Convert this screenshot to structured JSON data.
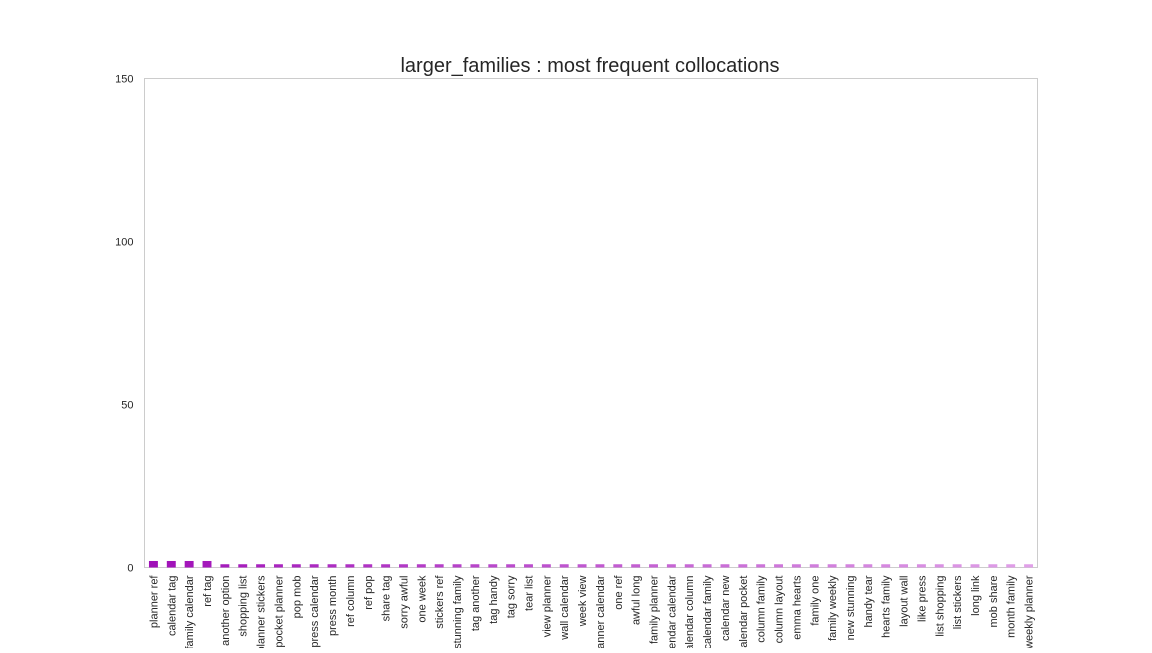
{
  "chart_data": {
    "type": "bar",
    "title": "larger_families : most frequent collocations",
    "xlabel": "",
    "ylabel": "",
    "ylim": [
      0,
      150
    ],
    "yticks": [
      0,
      50,
      100,
      150
    ],
    "grid": false,
    "legend": "none",
    "color_start": "#a010b8",
    "color_end": "#e0a0e8",
    "categories": [
      "planner ref",
      "calendar tag",
      "family calendar",
      "ref tag",
      "another option",
      "shopping list",
      "planner stickers",
      "pocket planner",
      "pop mob",
      "press calendar",
      "press month",
      "ref column",
      "ref pop",
      "share tag",
      "sorry awful",
      "one week",
      "stickers ref",
      "stunning family",
      "tag another",
      "tag handy",
      "tag sorry",
      "tear list",
      "view planner",
      "wall calendar",
      "week view",
      "planner calendar",
      "one ref",
      "awful long",
      "family planner",
      "calendar calendar",
      "calendar column",
      "calendar family",
      "calendar new",
      "calendar pocket",
      "column family",
      "column layout",
      "emma hearts",
      "family one",
      "family weekly",
      "new stunning",
      "handy tear",
      "hearts family",
      "layout wall",
      "like press",
      "list shopping",
      "list stickers",
      "long link",
      "mob share",
      "month family",
      "weekly planner"
    ],
    "values": [
      2,
      2,
      2,
      2,
      1,
      1,
      1,
      1,
      1,
      1,
      1,
      1,
      1,
      1,
      1,
      1,
      1,
      1,
      1,
      1,
      1,
      1,
      1,
      1,
      1,
      1,
      1,
      1,
      1,
      1,
      1,
      1,
      1,
      1,
      1,
      1,
      1,
      1,
      1,
      1,
      1,
      1,
      1,
      1,
      1,
      1,
      1,
      1,
      1,
      1
    ]
  }
}
